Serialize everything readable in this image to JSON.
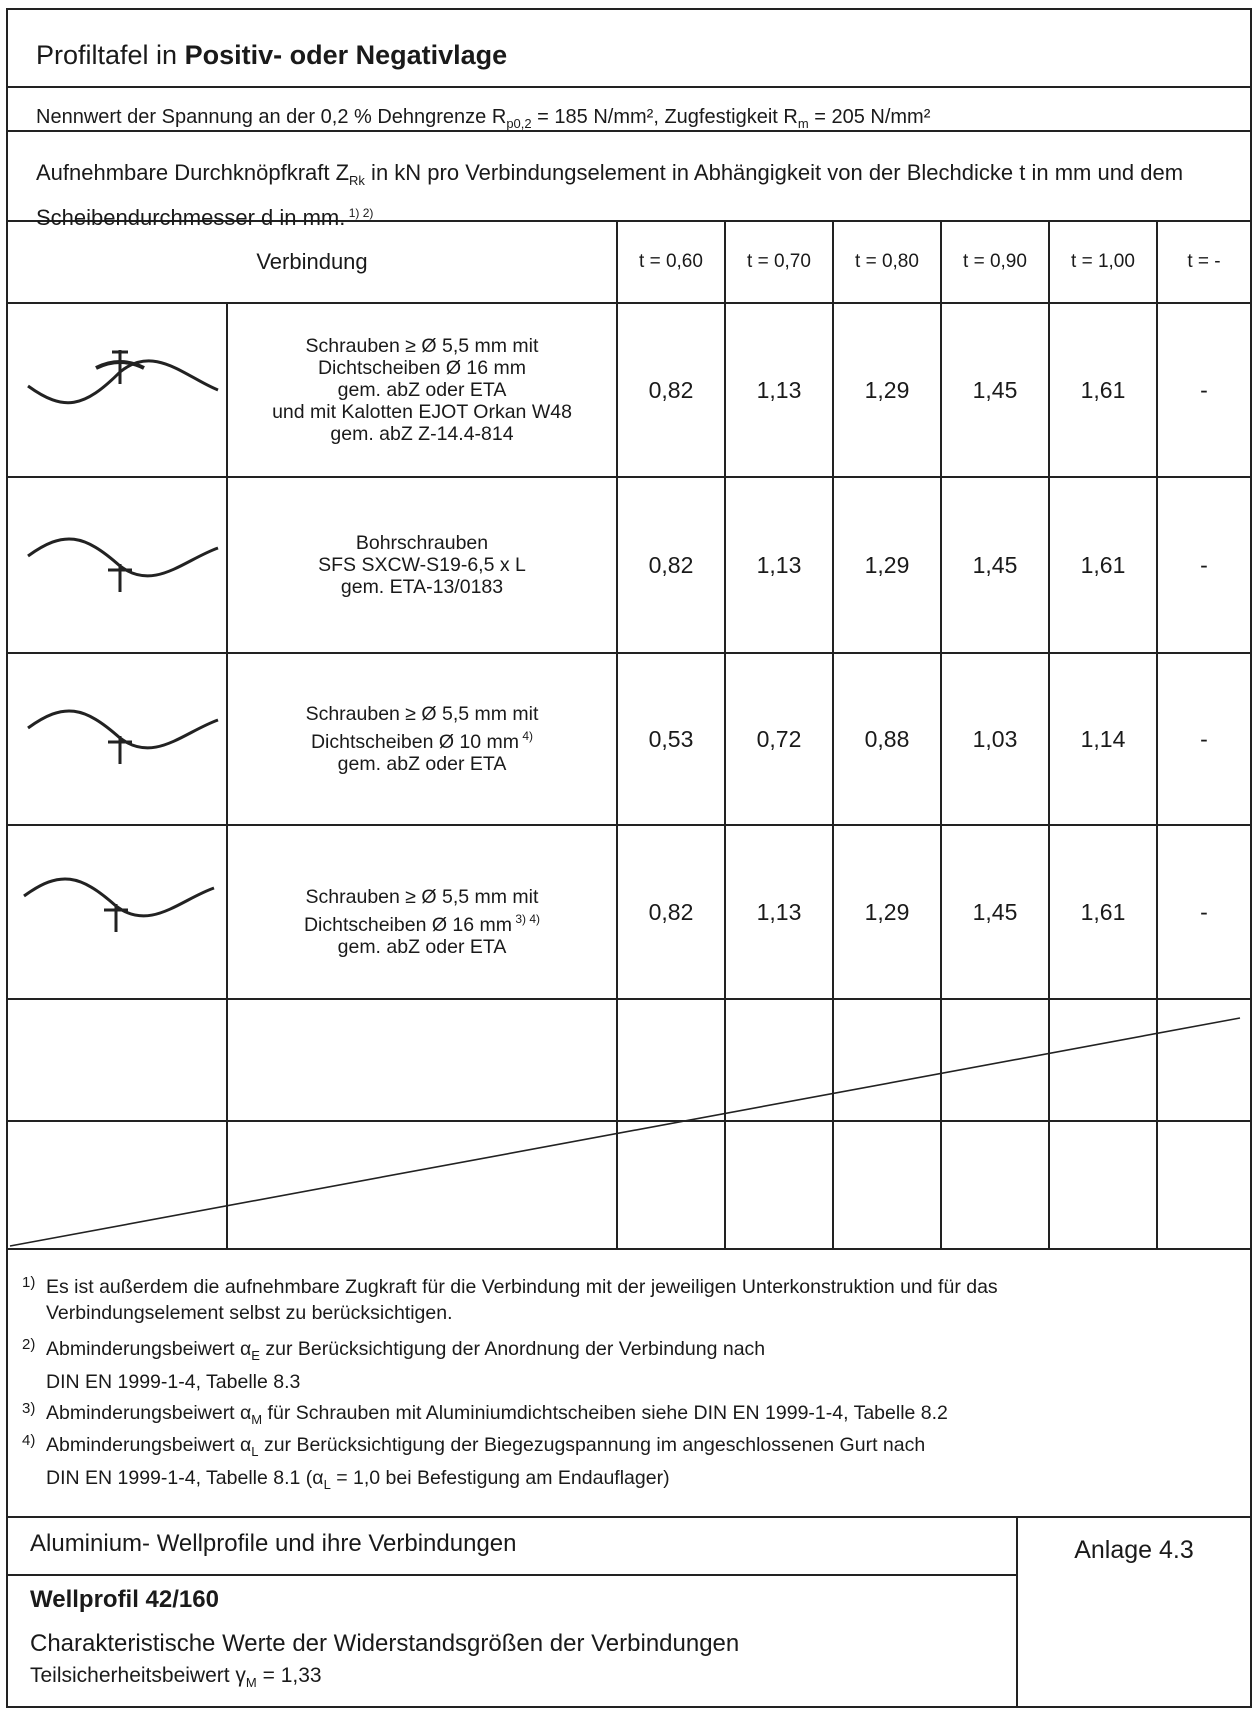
{
  "header": {
    "title_prefix": "Profiltafel in ",
    "title_bold": "Positiv- oder Negativlage",
    "stress_a": "Nennwert der Spannung an der 0,2 % Dehngrenze  R",
    "stress_sub": "p0,2",
    "stress_b": " =    185  N/mm², Zugfestigkeit R",
    "stress_sub2": "m",
    "stress_c": " =   205  N/mm²",
    "desc_a": "Aufnehmbare Durchknöpfkraft Z",
    "desc_sub": "Rk",
    "desc_b": " in kN pro Verbindungselement in Abhängigkeit von der Blechdicke t in mm und dem Scheibendurchmesser d in mm.",
    "desc_sup": " 1) 2)"
  },
  "table": {
    "col_verbindung": "Verbindung",
    "columns": [
      "t = 0,60",
      "t = 0,70",
      "t = 0,80",
      "t = 0,90",
      "t = 1,00",
      "t = -"
    ],
    "rows": [
      {
        "icon": "corrugated-sheet-top-screw-calotte-icon",
        "lines": [
          "Schrauben ≥ Ø 5,5 mm mit",
          "Dichtscheiben Ø 16 mm",
          "gem. abZ oder ETA",
          "und mit Kalotten EJOT Orkan W48",
          "gem. abZ Z-14.4-814"
        ],
        "values": [
          "0,82",
          "1,13",
          "1,29",
          "1,45",
          "1,61",
          "-"
        ]
      },
      {
        "icon": "corrugated-sheet-bottom-screw-icon",
        "lines": [
          "Bohrschrauben",
          "SFS SXCW-S19-6,5 x L",
          "gem. ETA-13/0183"
        ],
        "values": [
          "0,82",
          "1,13",
          "1,29",
          "1,45",
          "1,61",
          "-"
        ]
      },
      {
        "icon": "corrugated-sheet-bottom-screw-icon",
        "lines": [
          "Schrauben ≥ Ø 5,5 mm mit",
          "Dichtscheiben Ø 10 mm",
          "gem. abZ oder ETA"
        ],
        "sup": [
          "",
          " 4)",
          ""
        ],
        "values": [
          "0,53",
          "0,72",
          "0,88",
          "1,03",
          "1,14",
          "-"
        ]
      },
      {
        "icon": "corrugated-sheet-bottom-screw-icon",
        "lines": [
          "Schrauben ≥ Ø 5,5 mm mit",
          "Dichtscheiben Ø 16 mm",
          "gem. abZ oder ETA"
        ],
        "sup": [
          "",
          " 3) 4)",
          ""
        ],
        "values": [
          "0,82",
          "1,13",
          "1,29",
          "1,45",
          "1,61",
          "-"
        ]
      }
    ]
  },
  "footnotes": [
    {
      "num": "1)",
      "text": "Es ist außerdem die aufnehmbare Zugkraft für die Verbindung mit der jeweiligen Unterkonstruktion und für das",
      "text2": "Verbindungselement selbst zu berücksichtigen."
    },
    {
      "num": "2)",
      "text_a": "Abminderungsbeiwert α",
      "sub": "E",
      "text_b": " zur Berücksichtigung der Anordnung der Verbindung nach",
      "text2": "DIN EN 1999-1-4, Tabelle 8.3"
    },
    {
      "num": "3)",
      "text_a": "Abminderungsbeiwert α",
      "sub": "M",
      "text_b": " für Schrauben mit Aluminiumdichtscheiben siehe DIN EN 1999-1-4, Tabelle 8.2"
    },
    {
      "num": "4)",
      "text_a": "Abminderungsbeiwert α",
      "sub": "L",
      "text_b": " zur Berücksichtigung der Biegezugspannung im angeschlossenen Gurt nach",
      "text2_a": "DIN EN 1999-1-4, Tabelle 8.1 (α",
      "sub2": "L",
      "text2_b": " = 1,0 bei Befestigung am Endauflager)"
    }
  ],
  "footer": {
    "line1": "Aluminium- Wellprofile und ihre Verbindungen",
    "line2": "Wellprofil 42/160",
    "line3": "Charakteristische Werte der Widerstandsgrößen der Verbindungen",
    "line4_a": "Teilsicherheitsbeiwert γ",
    "line4_sub": "M",
    "line4_b": " = 1,33",
    "anlage": "Anlage 4.3"
  }
}
